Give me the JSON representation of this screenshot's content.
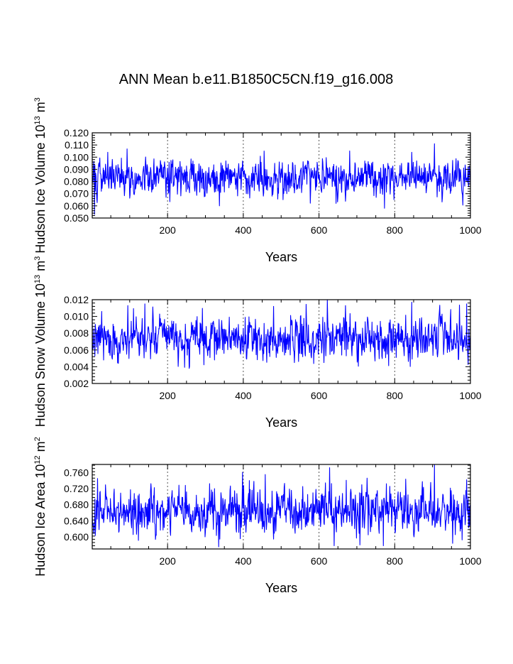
{
  "title": "ANN Mean b.e11.B1850C5CN.f19_g16.008",
  "line_color": "#0000ff",
  "chart_data": [
    {
      "type": "line",
      "name": "hudson-ice-volume",
      "ylabel": {
        "pre": "Hudson Ice Volume 10",
        "exp1": "13",
        "mid": " m",
        "exp2": "3"
      },
      "xlabel": "Years",
      "xlim": [
        1,
        1000
      ],
      "ylim": [
        0.05,
        0.12
      ],
      "xticks": [
        200,
        400,
        600,
        800,
        1000
      ],
      "xtick_labels": [
        "200",
        "400",
        "600",
        "800",
        "1000"
      ],
      "yticks": [
        0.05,
        0.06,
        0.07,
        0.08,
        0.09,
        0.1,
        0.11,
        0.12
      ],
      "ytick_labels": [
        "0.050",
        "0.060",
        "0.070",
        "0.080",
        "0.090",
        "0.100",
        "0.110",
        "0.120"
      ],
      "grid_x": [
        200,
        400,
        600,
        800
      ],
      "series": {
        "name": "Hudson Ice Volume",
        "start_year": 1,
        "mean": 0.084,
        "sd": 0.0075,
        "seed": 101,
        "spikes": [
          [
            7,
            0.053
          ],
          [
            455,
            0.105
          ],
          [
            905,
            0.111
          ],
          [
            773,
            0.058
          ],
          [
            337,
            0.06
          ],
          [
            845,
            0.104
          ],
          [
            42,
            0.104
          ],
          [
            645,
            0.062
          ]
        ]
      }
    },
    {
      "type": "line",
      "name": "hudson-snow-volume",
      "ylabel": {
        "pre": "Hudson Snow Volume 10",
        "exp1": "13",
        "mid": " m",
        "exp2": "3"
      },
      "xlabel": "Years",
      "xlim": [
        1,
        1000
      ],
      "ylim": [
        0.002,
        0.012
      ],
      "xticks": [
        200,
        400,
        600,
        800,
        1000
      ],
      "xtick_labels": [
        "200",
        "400",
        "600",
        "800",
        "1000"
      ],
      "yticks": [
        0.002,
        0.004,
        0.006,
        0.008,
        0.01,
        0.012
      ],
      "ytick_labels": [
        "0.002",
        "0.004",
        "0.006",
        "0.008",
        "0.010",
        "0.012"
      ],
      "grid_x": [
        200,
        400,
        600,
        800
      ],
      "series": {
        "name": "Hudson Snow Volume",
        "start_year": 1,
        "mean": 0.0074,
        "sd": 0.00125,
        "seed": 202,
        "spikes": [
          [
            622,
            0.012
          ],
          [
            257,
            0.0038
          ],
          [
            845,
            0.0117
          ],
          [
            990,
            0.0115
          ],
          [
            140,
            0.0115
          ],
          [
            95,
            0.0113
          ],
          [
            480,
            0.0112
          ],
          [
            31,
            0.0048
          ]
        ]
      }
    },
    {
      "type": "line",
      "name": "hudson-ice-area",
      "ylabel": {
        "pre": "Hudson Ice Area 10",
        "exp1": "12",
        "mid": " m",
        "exp2": "2"
      },
      "xlabel": "Years",
      "xlim": [
        1,
        1000
      ],
      "ylim": [
        0.57,
        0.78
      ],
      "xticks": [
        200,
        400,
        600,
        800,
        1000
      ],
      "xtick_labels": [
        "200",
        "400",
        "600",
        "800",
        "1000"
      ],
      "yticks": [
        0.6,
        0.64,
        0.68,
        0.72,
        0.76
      ],
      "ytick_labels": [
        "0.600",
        "0.640",
        "0.680",
        "0.720",
        "0.760"
      ],
      "grid_x": [
        200,
        400,
        600,
        800
      ],
      "series": {
        "name": "Hudson Ice Area",
        "start_year": 1,
        "mean": 0.665,
        "sd": 0.027,
        "seed": 303,
        "spikes": [
          [
            905,
            0.78
          ],
          [
            628,
            0.772
          ],
          [
            640,
            0.578
          ],
          [
            770,
            0.578
          ],
          [
            458,
            0.755
          ],
          [
            708,
            0.58
          ],
          [
            990,
            0.742
          ],
          [
            15,
            0.745
          ]
        ]
      }
    }
  ]
}
